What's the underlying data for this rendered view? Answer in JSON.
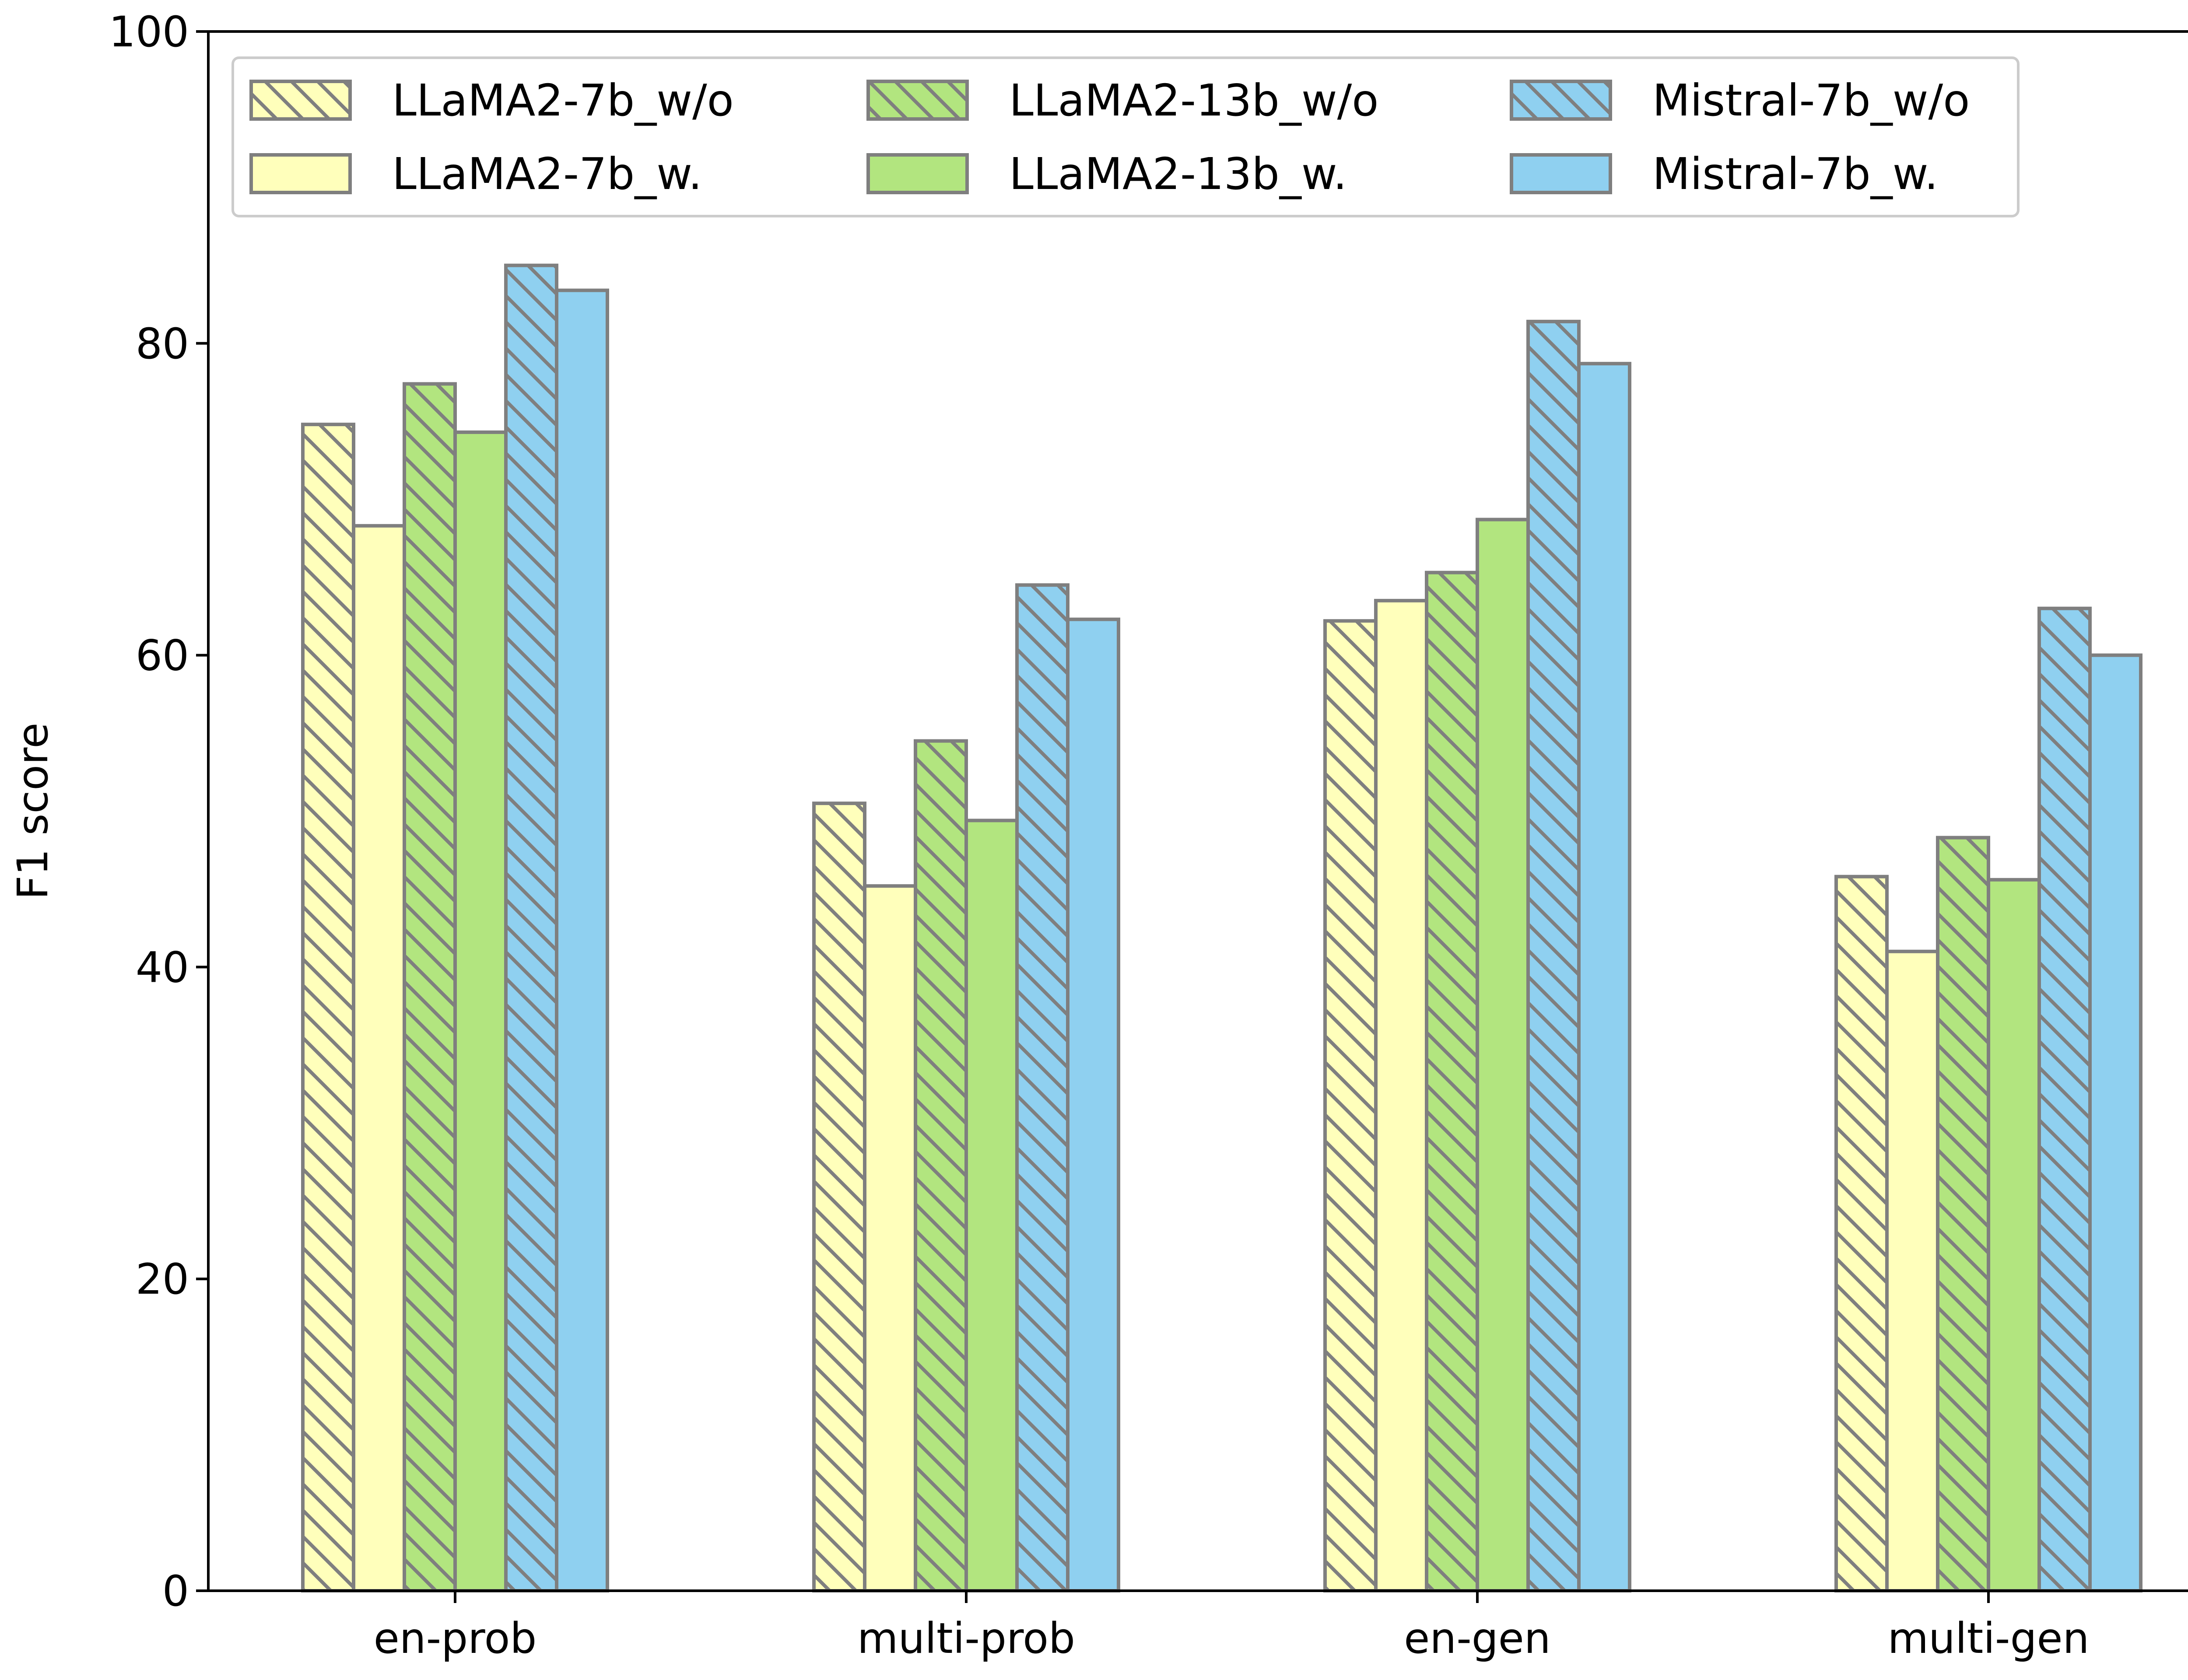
{
  "chart_data": {
    "type": "bar",
    "title": "",
    "xlabel": "",
    "ylabel": "F1 score",
    "ylim": [
      0,
      100
    ],
    "yticks": [
      0,
      20,
      40,
      60,
      80,
      100
    ],
    "categories": [
      "en-prob",
      "multi-prob",
      "en-gen",
      "multi-gen"
    ],
    "series": [
      {
        "name": "LLaMA2-7b_w/o",
        "color": "#FFFFBB",
        "hatch": true,
        "values": [
          74.8,
          50.5,
          62.2,
          45.8
        ]
      },
      {
        "name": "LLaMA2-7b_w.",
        "color": "#FFFFBB",
        "hatch": false,
        "values": [
          68.3,
          45.2,
          63.5,
          41.0
        ]
      },
      {
        "name": "LLaMA2-13b_w/o",
        "color": "#B2E57F",
        "hatch": true,
        "values": [
          77.4,
          54.5,
          65.3,
          48.3
        ]
      },
      {
        "name": "LLaMA2-13b_w.",
        "color": "#B2E57F",
        "hatch": false,
        "values": [
          74.3,
          49.4,
          68.7,
          45.6
        ]
      },
      {
        "name": "Mistral-7b_w/o",
        "color": "#8FD0F0",
        "hatch": true,
        "values": [
          85.0,
          64.5,
          81.4,
          63.0
        ]
      },
      {
        "name": "Mistral-7b_w.",
        "color": "#8FD0F0",
        "hatch": false,
        "values": [
          83.4,
          62.3,
          78.7,
          60.0
        ]
      }
    ],
    "legend_position": "top-left",
    "bar_edge_color": "#7F7F7F"
  }
}
